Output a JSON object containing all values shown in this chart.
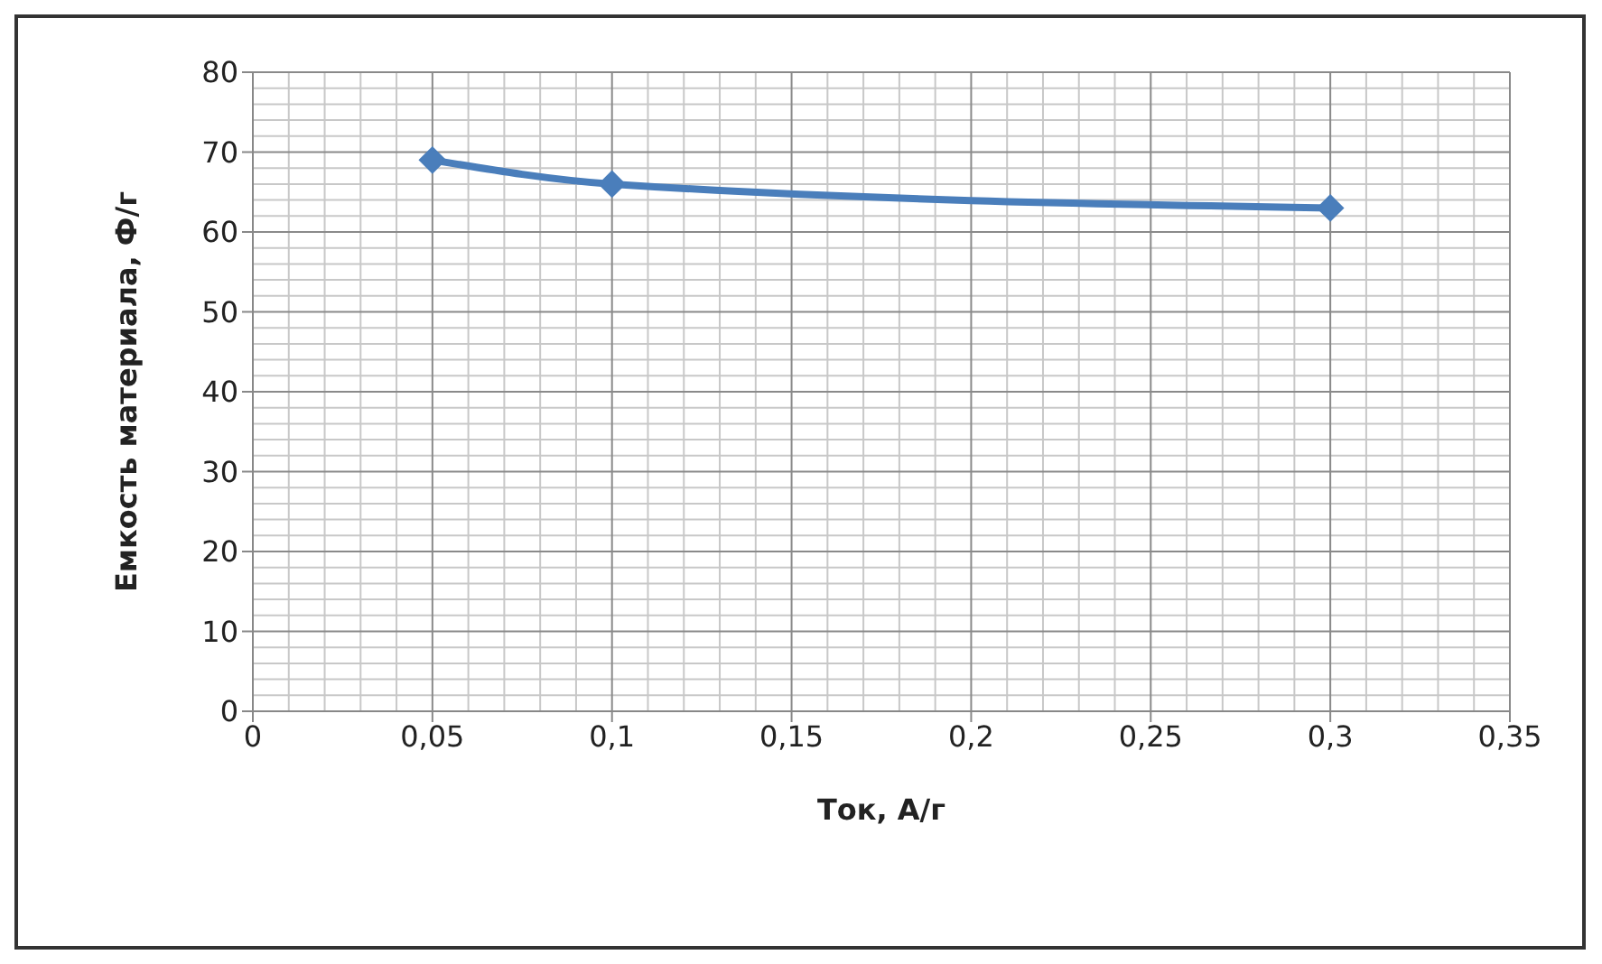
{
  "chart_data": {
    "type": "line",
    "xlabel": "Ток, А/г",
    "ylabel": "Емкость материала, Ф/г",
    "x": [
      0.05,
      0.1,
      0.3
    ],
    "series": [
      {
        "color": "#4a7ebb",
        "values": [
          69,
          66,
          63
        ]
      }
    ],
    "xlim": [
      0,
      0.35
    ],
    "xticks": [
      0,
      {
        "value": 0.05,
        "label": "0,05"
      },
      {
        "value": 0.1,
        "label": "0,1"
      },
      {
        "value": 0.15,
        "label": "0,15"
      },
      {
        "value": 0.2,
        "label": "0,2"
      },
      {
        "value": 0.25,
        "label": "0,25"
      },
      {
        "value": 0.3,
        "label": "0,3"
      },
      {
        "value": 0.35,
        "label": "0,35"
      }
    ],
    "ylim": [
      0,
      80
    ],
    "yticks": [
      0,
      10,
      20,
      30,
      40,
      50,
      60,
      70,
      80
    ],
    "grid": true,
    "marker": "diamond",
    "line_style": "solid",
    "legend": false
  }
}
